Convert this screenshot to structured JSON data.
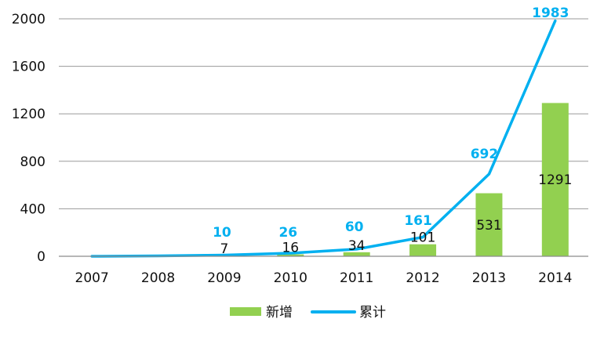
{
  "chart_data": {
    "type": "bar",
    "categories": [
      "2007",
      "2008",
      "2009",
      "2010",
      "2011",
      "2012",
      "2013",
      "2014"
    ],
    "series": [
      {
        "name": "新增",
        "kind": "bar",
        "color": "#92D050",
        "values": [
          0,
          0,
          7,
          16,
          34,
          101,
          531,
          1291
        ],
        "data_labels": [
          "",
          "",
          "7",
          "16",
          "34",
          "101",
          "531",
          "1291"
        ]
      },
      {
        "name": "累计",
        "kind": "line",
        "color": "#00B0F0",
        "values": [
          0,
          3,
          10,
          26,
          60,
          161,
          692,
          1983
        ],
        "data_labels": [
          "",
          "",
          "10",
          "26",
          "60",
          "161",
          "692",
          "1983"
        ]
      }
    ],
    "y_ticks": [
      "0",
      "400",
      "800",
      "1200",
      "1600",
      "2000"
    ],
    "ylim": [
      0,
      2000
    ],
    "grid": true,
    "legend_position": "bottom"
  }
}
